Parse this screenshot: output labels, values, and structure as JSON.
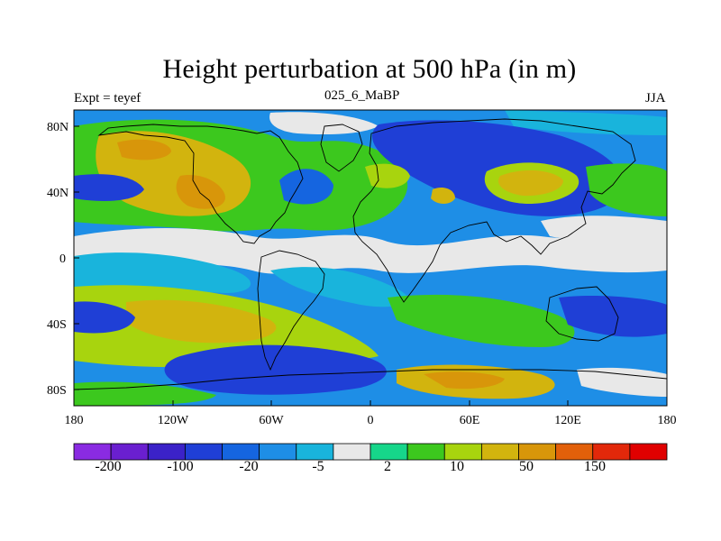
{
  "map": {
    "title": "Height perturbation at 500 hPa (in m)",
    "left_label": "Expt = teyef",
    "center_label": "025_6_MaBP",
    "right_label": "JJA",
    "lat_ticks": [
      "80N",
      "40N",
      "0",
      "40S",
      "80S"
    ],
    "lon_ticks": [
      "180",
      "120W",
      "60W",
      "0",
      "60E",
      "120E",
      "180"
    ]
  },
  "colorbar": {
    "colors": [
      "#8a2be2",
      "#6a1fd0",
      "#3b22c8",
      "#1f3fd6",
      "#1565e0",
      "#1e8ee6",
      "#19b4dc",
      "#e8e8e8",
      "#16d68a",
      "#3cc81e",
      "#a8d40e",
      "#d2b40e",
      "#d8960a",
      "#e2600a",
      "#e2280a",
      "#e00000"
    ],
    "tick_labels": [
      "-200",
      "-100",
      "-20",
      "-5",
      "2",
      "10",
      "50",
      "150"
    ]
  },
  "palette": {
    "land_outline": "#000000",
    "frame": "#000000"
  }
}
